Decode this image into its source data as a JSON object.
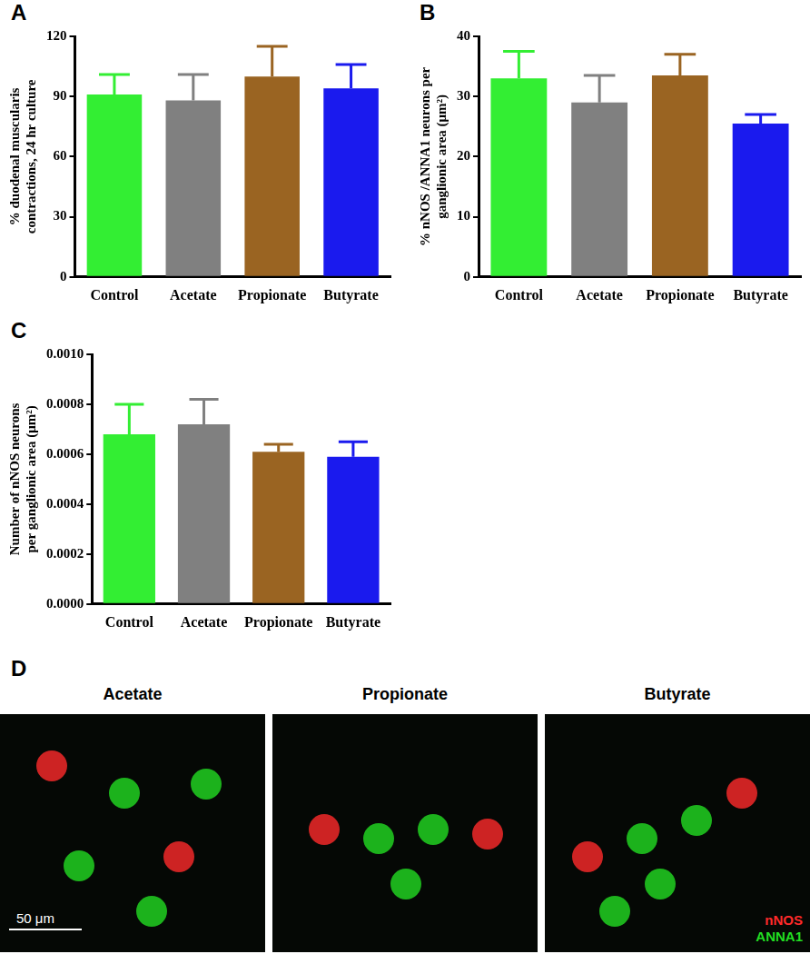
{
  "chart_data": [
    {
      "type": "bar",
      "panel": "A",
      "y_label": [
        "% duodenal muscularis",
        "contractions, 24 hr culture"
      ],
      "categories": [
        "Control",
        "Acetate",
        "Propionate",
        "Butyrate"
      ],
      "values": [
        91,
        88,
        100,
        94
      ],
      "errors": [
        10,
        13,
        15,
        12
      ],
      "colors": [
        "#33ee33",
        "#808080",
        "#9a6422",
        "#1a1aee"
      ],
      "ylim": [
        0,
        120
      ],
      "yticks": [
        0,
        30,
        60,
        90,
        120
      ],
      "grid": false
    },
    {
      "type": "bar",
      "panel": "B",
      "y_label": [
        "% nNOS /ANNA1 neurons per",
        "ganglionic area (μm²)"
      ],
      "categories": [
        "Control",
        "Acetate",
        "Propionate",
        "Butyrate"
      ],
      "values": [
        33,
        29,
        33.5,
        25.5
      ],
      "errors": [
        4.5,
        4.5,
        3.5,
        1.5
      ],
      "colors": [
        "#33ee33",
        "#808080",
        "#9a6422",
        "#1a1aee"
      ],
      "ylim": [
        0,
        40
      ],
      "yticks": [
        0,
        10,
        20,
        30,
        40
      ],
      "grid": false
    },
    {
      "type": "bar",
      "panel": "C",
      "y_label": [
        "Number of nNOS neurons",
        "per ganglionic area (μm²)"
      ],
      "categories": [
        "Control",
        "Acetate",
        "Propionate",
        "Butyrate"
      ],
      "values": [
        0.00068,
        0.00072,
        0.00061,
        0.00059
      ],
      "errors": [
        0.00012,
        0.0001,
        3e-05,
        6e-05
      ],
      "colors": [
        "#33ee33",
        "#808080",
        "#9a6422",
        "#1a1aee"
      ],
      "ylim": [
        0,
        0.001
      ],
      "yticks": [
        {
          "value": 0,
          "label": "0.0000"
        },
        {
          "value": 0.0002,
          "label": "0.0002"
        },
        {
          "value": 0.0004,
          "label": "0.0004"
        },
        {
          "value": 0.0006,
          "label": "0.0006"
        },
        {
          "value": 0.0008,
          "label": "0.0008"
        },
        {
          "value": 0.001,
          "label": "0.0010"
        }
      ],
      "grid": false
    }
  ],
  "image_panel": {
    "panel": "D",
    "titles": [
      "Acetate",
      "Propionate",
      "Butyrate"
    ],
    "scale_bar": "50 μm",
    "channels": [
      {
        "name": "nNOS",
        "color": "#ff2a2a"
      },
      {
        "name": "ANNA1",
        "color": "#22dd22"
      }
    ]
  }
}
